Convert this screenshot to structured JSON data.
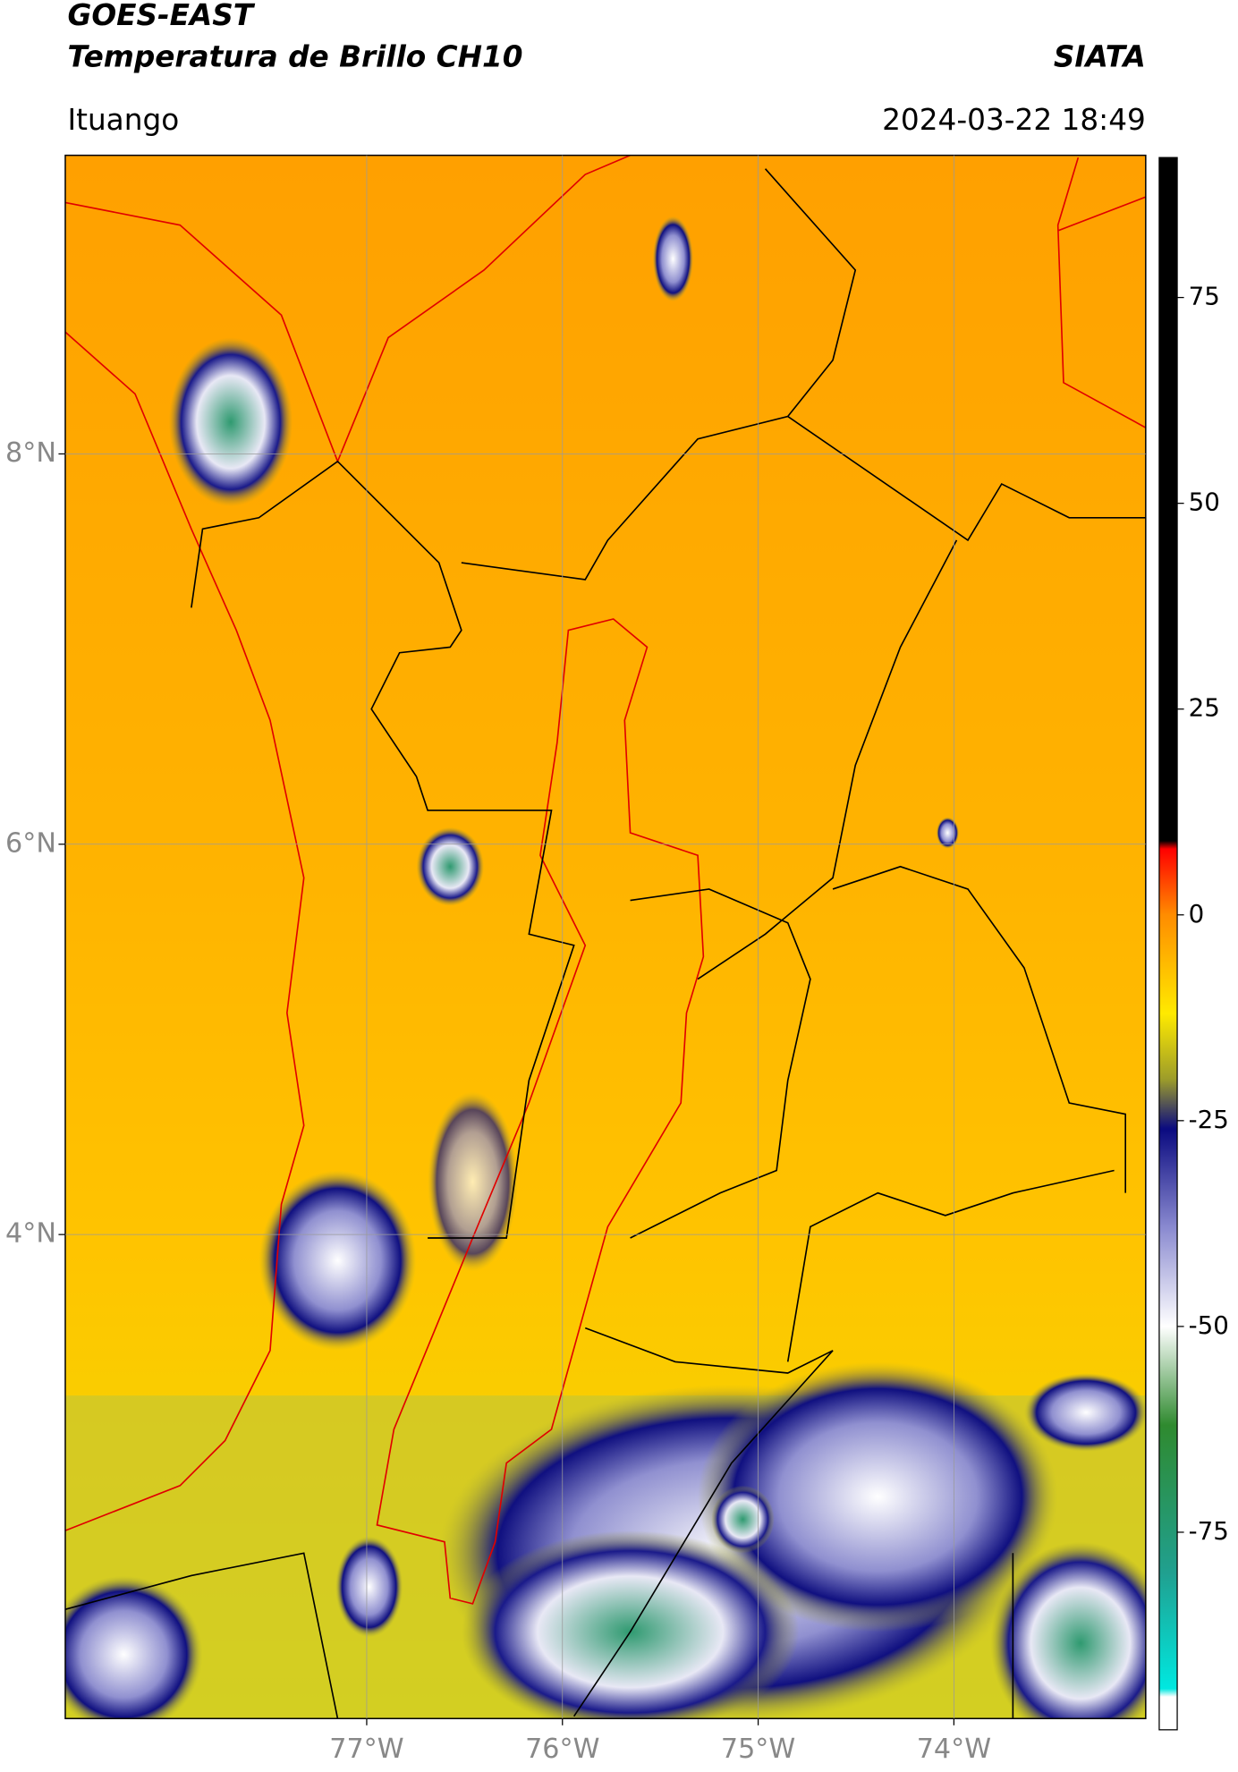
{
  "header": {
    "satellite": "GOES-EAST",
    "product": "Temperatura de Brillo CH10",
    "agency": "SIATA",
    "region": "Ituango",
    "datetime": "2024-03-22 18:49"
  },
  "map": {
    "xlim": [
      -78.54,
      -73.02
    ],
    "ylim": [
      1.52,
      9.53
    ],
    "xticks": [
      {
        "value": -77,
        "label": "77°W"
      },
      {
        "value": -76,
        "label": "76°W"
      },
      {
        "value": -75,
        "label": "75°W"
      },
      {
        "value": -74,
        "label": "74°W"
      }
    ],
    "yticks": [
      {
        "value": 8,
        "label": "8°N"
      },
      {
        "value": 6,
        "label": "6°N"
      },
      {
        "value": 4,
        "label": "4°N"
      }
    ],
    "grid": true,
    "grid_color": "#9a9a9a"
  },
  "colorbar": {
    "clim": [
      -99,
      92
    ],
    "ticks": [
      75,
      50,
      25,
      0,
      -25,
      -50,
      -75
    ],
    "stops": [
      {
        "value": 92,
        "color": "#000000"
      },
      {
        "value": 9,
        "color": "#000000"
      },
      {
        "value": 8,
        "color": "#ff0000"
      },
      {
        "value": 0,
        "color": "#ff8c00"
      },
      {
        "value": -12,
        "color": "#ffea00"
      },
      {
        "value": -20,
        "color": "#9c9c2a"
      },
      {
        "value": -26,
        "color": "#0a0a80"
      },
      {
        "value": -38,
        "color": "#8a8ad0"
      },
      {
        "value": -50,
        "color": "#ffffff"
      },
      {
        "value": -62,
        "color": "#2f8a2f"
      },
      {
        "value": -80,
        "color": "#20a090"
      },
      {
        "value": -94,
        "color": "#00e8e0"
      },
      {
        "value": -95,
        "color": "#ffffff"
      },
      {
        "value": -99,
        "color": "#ffffff"
      }
    ]
  }
}
